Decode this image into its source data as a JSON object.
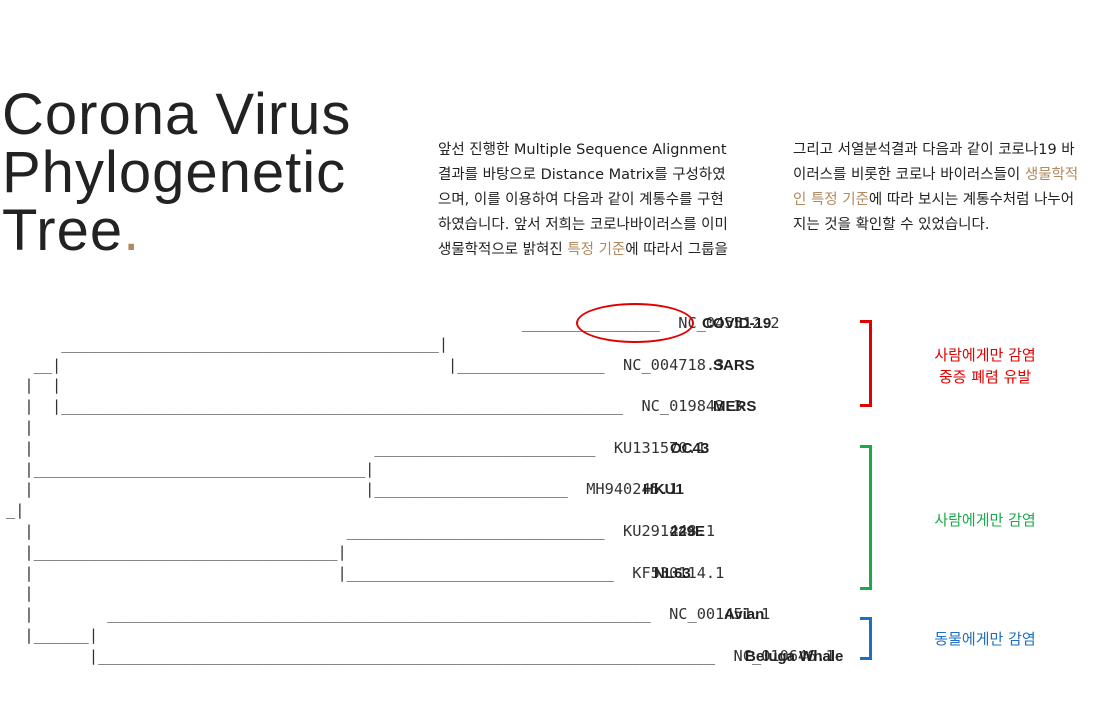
{
  "title": {
    "lines": [
      "Corona Virus",
      "Phylogenetic",
      "Tree"
    ],
    "dot": "."
  },
  "para1": {
    "lines": [
      [
        "앞선 진행한 Multiple Sequence Alignment"
      ],
      [
        "결과를 바탕으로 Distance Matrix를 구성하였"
      ],
      [
        "으며, 이를 이용하여 다음과 같이 계통수를 구현"
      ],
      [
        "하였습니다. 앞서 저희는 코로나바이러스를 이미"
      ],
      [
        "생물학적으로 밝혀진 ",
        "특정 기준",
        "에 따라서 그룹을"
      ]
    ]
  },
  "para2": {
    "lines": [
      [
        "그리고 서열분석결과 다음과 같이 코로나19 바"
      ],
      [
        "이러스를 비롯한 코로나 바이러스들이 ",
        "생물학적"
      ],
      [
        "인 특정 기준",
        "에 따라 보시는 계통수처럼 나누어"
      ],
      [
        "지는 것을 확인할 수 있었습니다."
      ]
    ]
  },
  "tree": {
    "lines": [
      "                                                        _______________  NC_045512.2",
      "      _________________________________________|",
      "   __|                                          |________________  NC_004718.3",
      "  |  |",
      "  |  |_____________________________________________________________  NC_019843.3",
      "  |",
      "  |                                     ________________________  KU131570.1",
      "  |____________________________________|",
      "  |                                    |_____________________  MH940245.1",
      "_|",
      "  |                                  ____________________________  KU291448.1",
      "  |_________________________________|",
      "  |                                 |_____________________________  KF530114.1",
      "  |",
      "  |        ___________________________________________________________  NC_001451.1",
      "  |______|",
      "         |___________________________________________________________________  NC_010646.1"
    ],
    "leaves": [
      {
        "id": "NC_045512.2",
        "name": "COVID-19"
      },
      {
        "id": "NC_004718.3",
        "name": "SARS"
      },
      {
        "id": "NC_019843.3",
        "name": "MERS"
      },
      {
        "id": "KU131570.1",
        "name": "OC43"
      },
      {
        "id": "MH940245.1",
        "name": "HKU1"
      },
      {
        "id": "KU291448.1",
        "name": "229E"
      },
      {
        "id": "KF530114.1",
        "name": "NL63"
      },
      {
        "id": "NC_001451.1",
        "name": "Avian"
      },
      {
        "id": "NC_010646.1",
        "name": "Beluga Whale"
      }
    ]
  },
  "groups": [
    {
      "label_lines": [
        "사람에게만 감염",
        "중증 폐렴 유발"
      ],
      "color": "#e00000"
    },
    {
      "label_lines": [
        "사람에게만 감염"
      ],
      "color": "#1aaa4a"
    },
    {
      "label_lines": [
        "동물에게만 감염"
      ],
      "color": "#1e6fbf"
    }
  ],
  "colors": {
    "accent": "#b08a5e",
    "highlight_circle": "#e00000"
  }
}
